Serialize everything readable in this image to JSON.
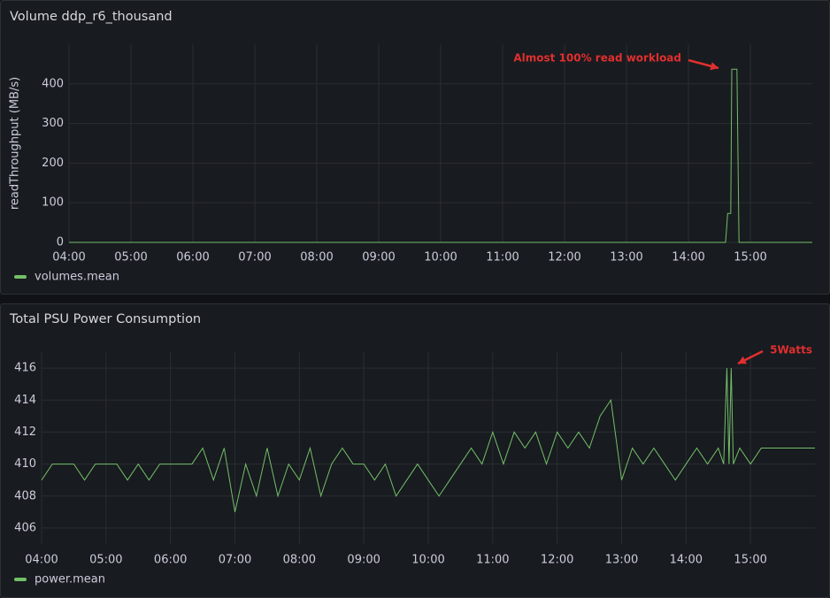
{
  "chart_data": [
    {
      "type": "line",
      "title": "Volume ddp_r6_thousand",
      "ylabel": "readThroughput (MB/s)",
      "x": [
        "04:00",
        "14:36",
        "14:38",
        "14:41",
        "14:42",
        "14:47",
        "14:49",
        "16:00"
      ],
      "series": [
        {
          "name": "volumes.mean",
          "color": "#73bf69",
          "values": [
            0,
            0,
            73,
            73,
            437,
            437,
            0,
            0
          ]
        }
      ],
      "xlim": [
        "04:00",
        "16:00"
      ],
      "xticks": [
        "04:00",
        "05:00",
        "06:00",
        "07:00",
        "08:00",
        "09:00",
        "10:00",
        "11:00",
        "12:00",
        "13:00",
        "14:00",
        "15:00"
      ],
      "ylim": [
        0,
        500
      ],
      "yticks": [
        0,
        100,
        200,
        300,
        400
      ],
      "grid": true,
      "legend": "bottom-left",
      "annotations": [
        {
          "text": "Almost 100% read workload",
          "color": "#e02f2f"
        }
      ]
    },
    {
      "type": "line",
      "title": "Total PSU Power Consumption",
      "x": [
        "04:00",
        "04:10",
        "04:20",
        "04:30",
        "04:40",
        "04:50",
        "05:00",
        "05:10",
        "05:20",
        "05:30",
        "05:40",
        "05:50",
        "06:00",
        "06:10",
        "06:20",
        "06:30",
        "06:40",
        "06:50",
        "07:00",
        "07:10",
        "07:20",
        "07:30",
        "07:40",
        "07:50",
        "08:00",
        "08:10",
        "08:20",
        "08:30",
        "08:40",
        "08:50",
        "09:00",
        "09:10",
        "09:20",
        "09:30",
        "09:40",
        "09:50",
        "10:00",
        "10:10",
        "10:20",
        "10:30",
        "10:40",
        "10:50",
        "11:00",
        "11:10",
        "11:20",
        "11:30",
        "11:40",
        "11:50",
        "12:00",
        "12:10",
        "12:20",
        "12:30",
        "12:40",
        "12:50",
        "13:00",
        "13:10",
        "13:20",
        "13:30",
        "13:40",
        "13:50",
        "14:00",
        "14:10",
        "14:20",
        "14:30",
        "14:35",
        "14:38",
        "14:40",
        "14:42",
        "14:44",
        "14:50",
        "15:00",
        "15:10",
        "15:20",
        "15:40",
        "16:00"
      ],
      "series": [
        {
          "name": "power.mean",
          "color": "#73bf69",
          "values": [
            409,
            410,
            410,
            410,
            409,
            410,
            410,
            410,
            409,
            410,
            409,
            410,
            410,
            410,
            410,
            411,
            409,
            411,
            407,
            410,
            408,
            411,
            408,
            410,
            409,
            411,
            408,
            410,
            411,
            410,
            410,
            409,
            410,
            408,
            409,
            410,
            409,
            408,
            409,
            410,
            411,
            410,
            412,
            410,
            412,
            411,
            412,
            410,
            412,
            411,
            412,
            411,
            413,
            414,
            409,
            411,
            410,
            411,
            410,
            409,
            410,
            411,
            410,
            411,
            410,
            416,
            410,
            416,
            410,
            411,
            410,
            411,
            411,
            411,
            411
          ]
        }
      ],
      "xlim": [
        "04:00",
        "16:00"
      ],
      "xticks": [
        "04:00",
        "05:00",
        "06:00",
        "07:00",
        "08:00",
        "09:00",
        "10:00",
        "11:00",
        "12:00",
        "13:00",
        "14:00",
        "15:00"
      ],
      "ylim": [
        405,
        417
      ],
      "yticks": [
        406,
        408,
        410,
        412,
        414,
        416
      ],
      "grid": true,
      "legend": "bottom-left",
      "annotations": [
        {
          "text": "5Watts",
          "color": "#e02f2f"
        }
      ]
    }
  ]
}
